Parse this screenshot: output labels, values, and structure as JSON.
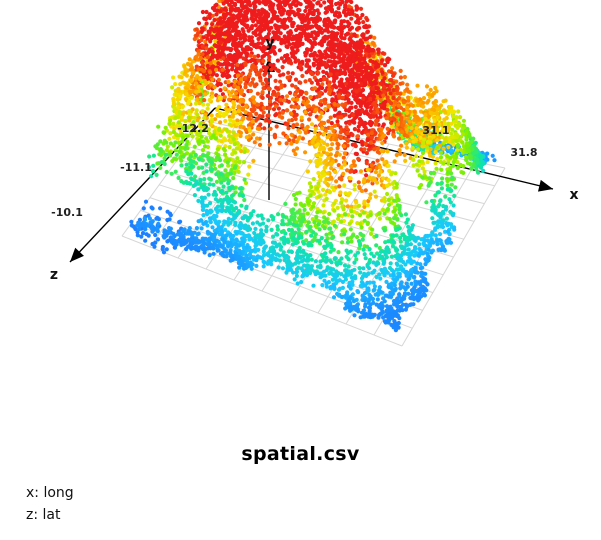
{
  "chart_data": {
    "type": "scatter",
    "subtype": "3d-surface-point-cloud",
    "title": "spatial.csv",
    "axes": {
      "x": {
        "letter": "x",
        "variable": "long",
        "legend_text": "x: long",
        "ticks": [
          "31.1",
          "31.8"
        ]
      },
      "y": {
        "letter": "y",
        "variable": "",
        "ticks": []
      },
      "z": {
        "letter": "z",
        "variable": "lat",
        "legend_text": "z: lat",
        "ticks": [
          "-12.2",
          "-11.1",
          "-10.1"
        ]
      }
    },
    "x_range": [
      30.9,
      32.0
    ],
    "z_range": [
      -12.5,
      -9.9
    ],
    "y_range": [
      0,
      1
    ],
    "grid": true,
    "colormap": [
      "#1e64ff",
      "#19c8ff",
      "#10e89a",
      "#7ef000",
      "#f5e600",
      "#ff8a00",
      "#ee1c1c"
    ],
    "peaks": [
      {
        "long": 31.02,
        "lat": -12.35,
        "height": 1.0
      },
      {
        "long": 31.22,
        "lat": -12.25,
        "height": 0.85
      },
      {
        "long": 31.38,
        "lat": -12.2,
        "height": 0.78
      },
      {
        "long": 31.12,
        "lat": -11.9,
        "height": 0.58
      },
      {
        "long": 31.12,
        "lat": -11.45,
        "height": 0.9
      },
      {
        "long": 31.04,
        "lat": -11.6,
        "height": 0.7
      },
      {
        "long": 30.95,
        "lat": -10.95,
        "height": 0.62
      },
      {
        "long": 31.28,
        "lat": -10.95,
        "height": 0.72
      },
      {
        "long": 31.45,
        "lat": -11.35,
        "height": 0.68
      },
      {
        "long": 31.68,
        "lat": -11.45,
        "height": 0.82
      },
      {
        "long": 31.88,
        "lat": -11.8,
        "height": 0.58
      },
      {
        "long": 31.72,
        "lat": -10.75,
        "height": 0.78
      },
      {
        "long": 31.52,
        "lat": -11.95,
        "height": 0.52
      },
      {
        "long": 31.55,
        "lat": -10.5,
        "height": 0.4
      }
    ],
    "holes": [
      {
        "long": 31.3,
        "lat": -11.55,
        "r": 0.17
      },
      {
        "long": 31.42,
        "lat": -10.65,
        "r": 0.14
      },
      {
        "long": 31.02,
        "lat": -10.35,
        "r": 0.12
      },
      {
        "long": 31.82,
        "lat": -11.15,
        "r": 0.1
      },
      {
        "long": 31.62,
        "lat": -10.95,
        "r": 0.09
      },
      {
        "long": 31.85,
        "lat": -12.2,
        "r": 0.08
      }
    ]
  }
}
